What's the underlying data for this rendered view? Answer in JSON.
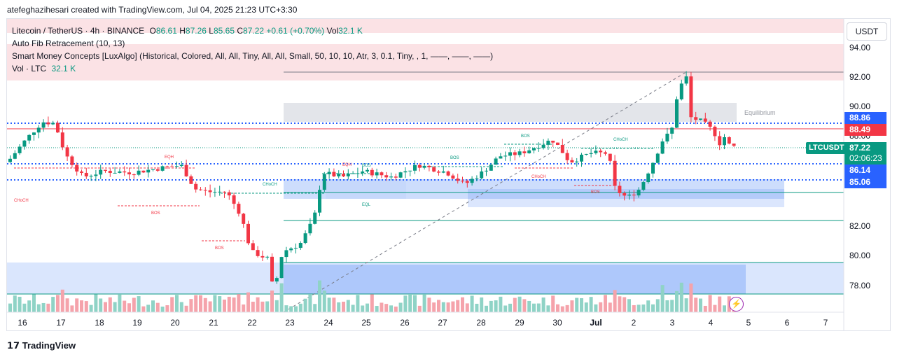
{
  "header": {
    "credit": "atefeghazihesari created with TradingView.com, Jul 04, 2025 21:23 UTC+3:30"
  },
  "legend": {
    "symbol": "Litecoin / TetherUS · 4h · BINANCE",
    "o_label": "O",
    "o": "86.61",
    "h_label": "H",
    "h": "87.26",
    "l_label": "L",
    "l": "85.65",
    "c_label": "C",
    "c": "87.22",
    "change": "+0.61 (+0.70%)",
    "vol_label": "Vol",
    "vol": "32.1 K",
    "ind1": "Auto Fib Retracement (10, 13)",
    "ind2": "Smart Money Concepts [LuxAlgo] (Historical, Colored, All, All, Tiny, All, All, Small, 50, 10, 10, Atr, 3, 0.1, Tiny, , 1, ——, ——, ——)",
    "ind3_label": "Vol · LTC",
    "ind3_value": "32.1 K"
  },
  "price_axis": {
    "currency": "USDT",
    "labels": [
      "94.00",
      "92.00",
      "90.00",
      "88.00",
      "82.00",
      "80.00",
      "78.00"
    ],
    "badge_88_86": "88.86",
    "badge_88_49": "88.49",
    "badge_86_14": "86.14",
    "badge_85_06": "85.06",
    "current_price": "87.22",
    "countdown": "02:06:23",
    "symbol_tag": "LTCUSDT",
    "colors": {
      "up": "#089981",
      "down": "#f23645",
      "fib_blue": "#2962ff",
      "fib_red": "#f23645"
    }
  },
  "time_axis": {
    "labels": [
      "16",
      "17",
      "18",
      "19",
      "20",
      "21",
      "22",
      "23",
      "24",
      "25",
      "26",
      "27",
      "28",
      "29",
      "30",
      "Jul",
      "2",
      "3",
      "4",
      "5",
      "6",
      "7"
    ]
  },
  "annotations": {
    "equilibrium": "Equilibrium",
    "smc_labels": [
      "EQH",
      "CHoCH",
      "BOS",
      "BOS",
      "CHoCH",
      "EQH",
      "BOS",
      "EQL",
      "BOS",
      "BOS",
      "CHoCH",
      "CHoCH",
      "BOS"
    ]
  },
  "footer": {
    "logo": "TradingView"
  }
}
